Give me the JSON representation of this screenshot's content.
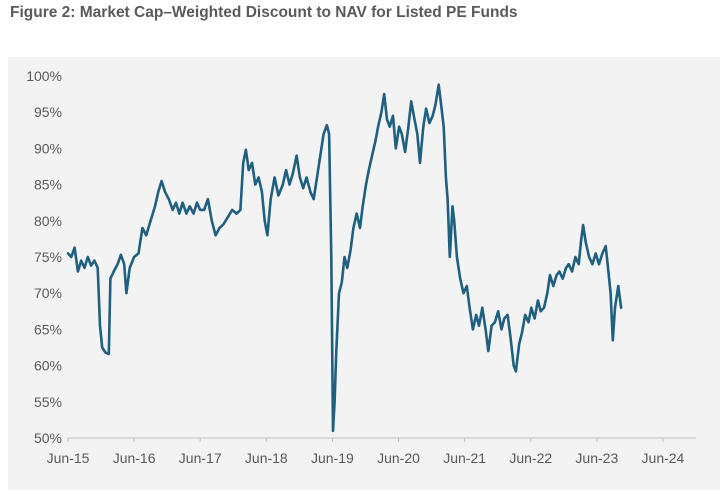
{
  "figure": {
    "title": "Figure 2: Market Cap–Weighted Discount to NAV for Listed PE Funds"
  },
  "chart_data": {
    "type": "line",
    "title": "Figure 2: Market Cap–Weighted Discount to NAV for Listed PE Funds",
    "xlabel": "",
    "ylabel": "",
    "x_unit": "months since Jun-15",
    "xlim": [
      0,
      114
    ],
    "ylim": [
      50,
      100
    ],
    "y_ticks": [
      "50%",
      "55%",
      "60%",
      "65%",
      "70%",
      "75%",
      "80%",
      "85%",
      "90%",
      "95%",
      "100%"
    ],
    "y_tick_values": [
      50,
      55,
      60,
      65,
      70,
      75,
      80,
      85,
      90,
      95,
      100
    ],
    "x_ticks": [
      "Jun-15",
      "Jun-16",
      "Jun-17",
      "Jun-18",
      "Jun-19",
      "Jun-20",
      "Jun-21",
      "Jun-22",
      "Jun-23",
      "Jun-24"
    ],
    "x_tick_positions": [
      0,
      12,
      24,
      36,
      48,
      60,
      72,
      84,
      96,
      108
    ],
    "grid": false,
    "legend": "none",
    "line_color": "#1f5f80",
    "series": [
      {
        "values": [
          [
            0,
            75.5
          ],
          [
            0.6,
            75
          ],
          [
            1.2,
            76.3
          ],
          [
            1.8,
            73
          ],
          [
            2.4,
            74.5
          ],
          [
            3,
            73.5
          ],
          [
            3.6,
            75
          ],
          [
            4.2,
            73.8
          ],
          [
            4.8,
            74.5
          ],
          [
            5.4,
            73.5
          ],
          [
            5.8,
            65.5
          ],
          [
            6.2,
            62.5
          ],
          [
            6.8,
            61.8
          ],
          [
            7.4,
            61.6
          ],
          [
            7.7,
            72
          ],
          [
            8.3,
            73
          ],
          [
            9,
            74
          ],
          [
            9.6,
            75.3
          ],
          [
            10.2,
            74
          ],
          [
            10.6,
            70
          ],
          [
            11.2,
            73.5
          ],
          [
            12,
            75
          ],
          [
            12.8,
            75.5
          ],
          [
            13.5,
            79
          ],
          [
            14.2,
            78
          ],
          [
            15,
            80
          ],
          [
            15.8,
            82
          ],
          [
            16.4,
            84
          ],
          [
            17,
            85.5
          ],
          [
            17.6,
            84
          ],
          [
            18.3,
            83
          ],
          [
            19,
            81.5
          ],
          [
            19.6,
            82.5
          ],
          [
            20.2,
            81
          ],
          [
            20.8,
            82.5
          ],
          [
            21.5,
            81
          ],
          [
            22.1,
            82
          ],
          [
            22.8,
            81
          ],
          [
            23.4,
            82.5
          ],
          [
            24,
            81.5
          ],
          [
            24.7,
            81.5
          ],
          [
            25.4,
            83
          ],
          [
            26.1,
            80
          ],
          [
            26.8,
            78
          ],
          [
            27.5,
            79
          ],
          [
            28.2,
            79.5
          ],
          [
            29,
            80.5
          ],
          [
            29.8,
            81.5
          ],
          [
            30.6,
            81
          ],
          [
            31.3,
            81.5
          ],
          [
            31.8,
            88
          ],
          [
            32.3,
            89.8
          ],
          [
            32.8,
            87
          ],
          [
            33.4,
            88
          ],
          [
            34,
            85
          ],
          [
            34.6,
            86
          ],
          [
            35.2,
            84
          ],
          [
            35.7,
            80
          ],
          [
            36.2,
            78
          ],
          [
            36.8,
            83
          ],
          [
            37.5,
            86
          ],
          [
            38.2,
            83.5
          ],
          [
            39,
            85
          ],
          [
            39.6,
            87
          ],
          [
            40.2,
            85
          ],
          [
            40.8,
            86.5
          ],
          [
            41.5,
            89
          ],
          [
            42.1,
            86
          ],
          [
            42.7,
            84.5
          ],
          [
            43.3,
            86
          ],
          [
            44,
            84
          ],
          [
            44.6,
            83
          ],
          [
            45.2,
            86
          ],
          [
            45.8,
            89
          ],
          [
            46.4,
            92
          ],
          [
            47,
            93.2
          ],
          [
            47.4,
            92
          ],
          [
            47.8,
            75
          ],
          [
            48.1,
            51
          ],
          [
            48.4,
            55
          ],
          [
            48.7,
            62
          ],
          [
            49.2,
            70
          ],
          [
            49.7,
            71.5
          ],
          [
            50.2,
            75
          ],
          [
            50.7,
            73.5
          ],
          [
            51.3,
            76
          ],
          [
            51.8,
            79
          ],
          [
            52.4,
            81
          ],
          [
            53,
            79
          ],
          [
            53.5,
            82
          ],
          [
            54.1,
            85
          ],
          [
            54.6,
            87
          ],
          [
            55.2,
            89
          ],
          [
            55.8,
            91
          ],
          [
            56.3,
            93
          ],
          [
            56.9,
            95
          ],
          [
            57.4,
            97.5
          ],
          [
            57.9,
            94
          ],
          [
            58.4,
            93
          ],
          [
            59,
            94.5
          ],
          [
            59.5,
            90
          ],
          [
            60.1,
            93
          ],
          [
            60.6,
            92
          ],
          [
            61.2,
            89.5
          ],
          [
            61.8,
            93
          ],
          [
            62.3,
            96.5
          ],
          [
            62.9,
            94
          ],
          [
            63.4,
            92
          ],
          [
            63.9,
            88
          ],
          [
            64.5,
            93
          ],
          [
            65,
            95.5
          ],
          [
            65.6,
            93.5
          ],
          [
            66.2,
            94.5
          ],
          [
            66.7,
            96
          ],
          [
            67.3,
            98.8
          ],
          [
            67.9,
            95
          ],
          [
            68.2,
            93
          ],
          [
            68.6,
            86
          ],
          [
            68.9,
            83
          ],
          [
            69.3,
            75
          ],
          [
            69.8,
            82
          ],
          [
            70.1,
            80
          ],
          [
            70.6,
            75
          ],
          [
            71.2,
            72
          ],
          [
            71.8,
            70
          ],
          [
            72.4,
            71
          ],
          [
            72.9,
            68
          ],
          [
            73.5,
            65
          ],
          [
            74.1,
            67
          ],
          [
            74.6,
            65.5
          ],
          [
            75.2,
            68
          ],
          [
            75.8,
            65
          ],
          [
            76.3,
            62
          ],
          [
            76.9,
            65.5
          ],
          [
            77.5,
            66
          ],
          [
            78.1,
            67.5
          ],
          [
            78.7,
            65
          ],
          [
            79.2,
            66.5
          ],
          [
            79.8,
            67
          ],
          [
            80.3,
            64
          ],
          [
            80.9,
            60
          ],
          [
            81.3,
            59.2
          ],
          [
            81.9,
            63
          ],
          [
            82.4,
            64.5
          ],
          [
            83,
            67
          ],
          [
            83.6,
            66
          ],
          [
            84.1,
            68
          ],
          [
            84.7,
            66.5
          ],
          [
            85.3,
            69
          ],
          [
            85.8,
            67.5
          ],
          [
            86.4,
            68
          ],
          [
            87,
            70
          ],
          [
            87.5,
            72.5
          ],
          [
            88.1,
            71
          ],
          [
            88.7,
            72.5
          ],
          [
            89.2,
            73
          ],
          [
            89.8,
            72
          ],
          [
            90.4,
            73.5
          ],
          [
            90.9,
            74
          ],
          [
            91.5,
            73
          ],
          [
            92.1,
            75
          ],
          [
            92.7,
            74
          ],
          [
            93.1,
            77
          ],
          [
            93.5,
            79.4
          ],
          [
            94,
            77
          ],
          [
            94.6,
            75
          ],
          [
            95.2,
            74
          ],
          [
            95.8,
            75.5
          ],
          [
            96.4,
            74
          ],
          [
            97,
            75.5
          ],
          [
            97.6,
            76.5
          ],
          [
            98.1,
            73
          ],
          [
            98.5,
            70
          ],
          [
            98.9,
            63.5
          ],
          [
            99.3,
            68
          ],
          [
            99.9,
            71
          ],
          [
            100.4,
            68
          ]
        ]
      }
    ]
  }
}
